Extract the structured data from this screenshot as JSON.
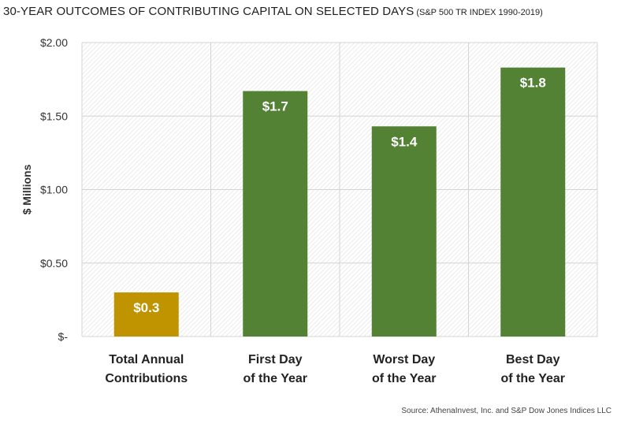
{
  "header": {
    "title": "30-YEAR OUTCOMES OF CONTRIBUTING CAPITAL ON SELECTED DAYS",
    "subtitle": "(S&P 500 TR INDEX 1990-2019)"
  },
  "source": "Source: AthenaInvest, Inc. and S&P Dow Jones Indices LLC",
  "colors": {
    "contribution_bar": "#C09400",
    "outcome_bar": "#548235",
    "grid": "#d4d4d4",
    "plot_hatch": "#e4e4e4"
  },
  "chart_data": {
    "type": "bar",
    "title": "30-YEAR OUTCOMES OF CONTRIBUTING CAPITAL ON SELECTED DAYS (S&P 500 TR INDEX 1990-2019)",
    "ylabel": "$ Millions",
    "xlabel": "",
    "ylim": [
      0,
      2.0
    ],
    "yticks": [
      {
        "value": 0,
        "label": "$-"
      },
      {
        "value": 0.5,
        "label": "$0.50"
      },
      {
        "value": 1.0,
        "label": "$1.00"
      },
      {
        "value": 1.5,
        "label": "$1.50"
      },
      {
        "value": 2.0,
        "label": "$2.00"
      }
    ],
    "categories": [
      [
        "Total Annual",
        "Contributions"
      ],
      [
        "First Day",
        "of the Year"
      ],
      [
        "Worst Day",
        "of the Year"
      ],
      [
        "Best Day",
        "of the Year"
      ]
    ],
    "values": [
      0.3,
      1.67,
      1.43,
      1.83
    ],
    "data_labels": [
      "$0.3",
      "$1.7",
      "$1.4",
      "$1.8"
    ],
    "bar_colors": [
      "#C09400",
      "#548235",
      "#548235",
      "#548235"
    ],
    "grid": true,
    "legend": "none"
  }
}
